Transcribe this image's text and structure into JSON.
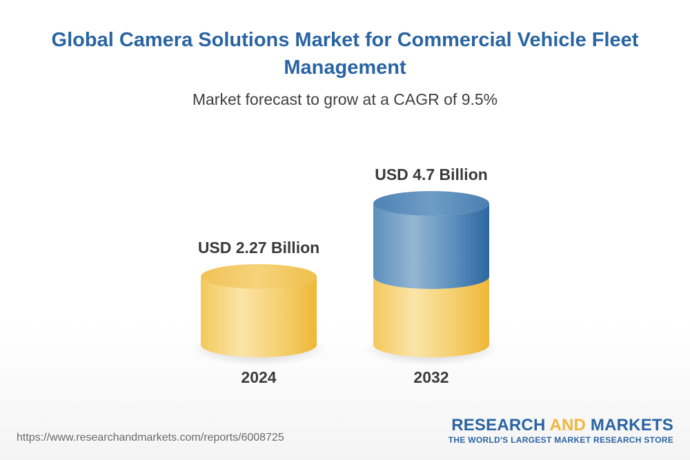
{
  "chart_data": {
    "type": "bar",
    "title": "Global Camera Solutions Market for Commercial Vehicle Fleet Management",
    "subtitle": "Market forecast to grow at a CAGR of 9.5%",
    "categories": [
      "2024",
      "2032"
    ],
    "values": [
      2.27,
      4.7
    ],
    "unit": "USD Billion",
    "data_labels": [
      "USD 2.27 Billion",
      "USD 4.7 Billion"
    ],
    "style": "3d-cylinder",
    "grid": false,
    "colors": {
      "base": "#f2c451",
      "growth": "#3f7bb0"
    }
  },
  "footer": {
    "url": "https://www.researchandmarkets.com/reports/6008725"
  },
  "brand": {
    "name_part1": "RESEARCH ",
    "name_part2": "AND",
    "name_part3": " MARKETS",
    "tagline": "THE WORLD'S LARGEST MARKET RESEARCH STORE"
  }
}
